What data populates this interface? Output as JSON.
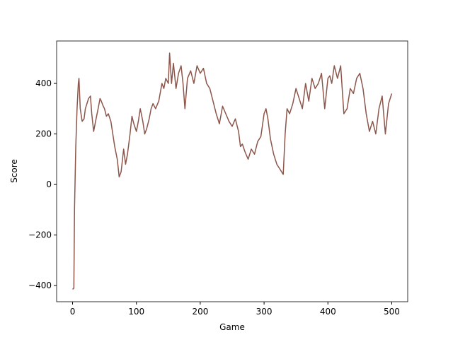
{
  "chart_data": {
    "type": "line",
    "xlabel": "Game",
    "ylabel": "Score",
    "x": [
      0,
      2,
      3,
      5,
      7,
      9,
      10,
      12,
      15,
      18,
      20,
      25,
      28,
      30,
      33,
      36,
      40,
      43,
      45,
      48,
      50,
      53,
      56,
      60,
      63,
      66,
      70,
      73,
      76,
      80,
      83,
      86,
      90,
      93,
      96,
      100,
      103,
      106,
      110,
      113,
      116,
      120,
      123,
      126,
      130,
      135,
      140,
      143,
      146,
      150,
      152,
      155,
      158,
      162,
      166,
      170,
      173,
      176,
      180,
      185,
      190,
      195,
      200,
      205,
      210,
      215,
      220,
      225,
      230,
      235,
      240,
      245,
      250,
      255,
      260,
      263,
      266,
      270,
      275,
      280,
      285,
      290,
      295,
      300,
      303,
      306,
      310,
      315,
      320,
      325,
      330,
      333,
      336,
      340,
      345,
      350,
      355,
      360,
      365,
      370,
      375,
      380,
      385,
      390,
      395,
      400,
      403,
      406,
      410,
      415,
      420,
      425,
      430,
      435,
      440,
      445,
      450,
      455,
      460,
      465,
      470,
      475,
      480,
      485,
      490,
      495,
      500
    ],
    "series": [
      {
        "color": "#8c564b",
        "values": [
          -415,
          -410,
          -100,
          150,
          300,
          400,
          420,
          300,
          250,
          260,
          300,
          340,
          350,
          280,
          210,
          250,
          300,
          340,
          330,
          310,
          300,
          270,
          280,
          250,
          200,
          150,
          100,
          30,
          50,
          140,
          80,
          120,
          200,
          270,
          240,
          210,
          250,
          300,
          250,
          200,
          220,
          260,
          300,
          320,
          300,
          330,
          400,
          380,
          420,
          400,
          520,
          400,
          480,
          380,
          440,
          470,
          400,
          300,
          420,
          450,
          400,
          470,
          440,
          460,
          400,
          380,
          330,
          280,
          240,
          310,
          280,
          250,
          230,
          260,
          210,
          150,
          160,
          130,
          100,
          140,
          120,
          170,
          190,
          280,
          300,
          260,
          180,
          120,
          80,
          60,
          40,
          200,
          300,
          280,
          320,
          380,
          340,
          300,
          400,
          330,
          420,
          380,
          400,
          440,
          300,
          420,
          430,
          400,
          470,
          420,
          470,
          280,
          300,
          380,
          360,
          420,
          440,
          380,
          280,
          210,
          250,
          200,
          300,
          350,
          200,
          320,
          360
        ]
      }
    ],
    "xlim": [
      -25,
      525
    ],
    "xticks": [
      0,
      100,
      200,
      300,
      400,
      500
    ],
    "ylim": [
      -464,
      568
    ],
    "yticks": [
      {
        "value": -400,
        "label": "−400"
      },
      {
        "value": -200,
        "label": "−200"
      },
      0,
      200,
      400
    ]
  }
}
